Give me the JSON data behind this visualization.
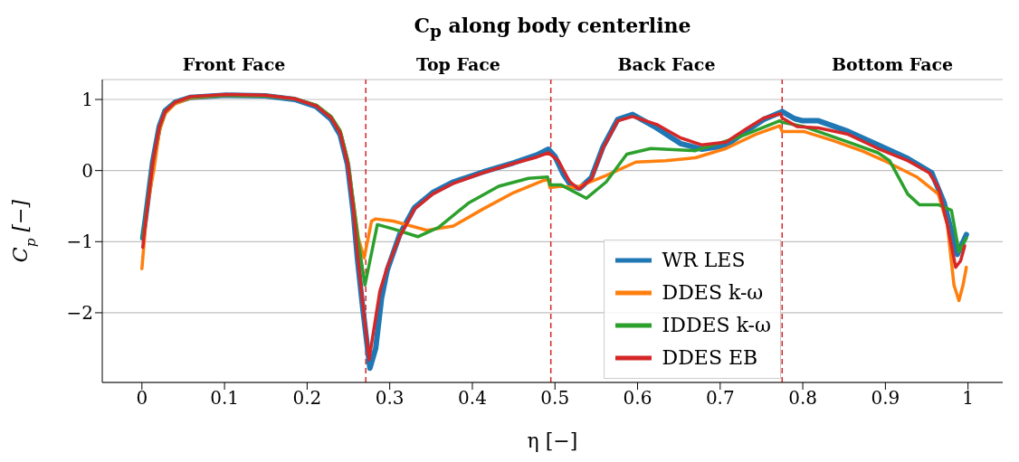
{
  "chart_data": {
    "type": "line",
    "title": "C$_{p}$ along body centerline",
    "xlabel": "η [−]",
    "ylabel": "C$_{p}$ [−]",
    "annotations": [
      "Front Face",
      "Top Face",
      "Back Face",
      "Bottom Face"
    ],
    "xlim": [
      -0.048,
      1.042
    ],
    "ylim": [
      -2.98,
      1.28
    ],
    "xticks": [
      0,
      0.1,
      0.2,
      0.3,
      0.4,
      0.5,
      0.6,
      0.7,
      0.8,
      0.9,
      1
    ],
    "yticks": [
      {
        "value": -2,
        "label": "−2"
      },
      {
        "value": -1,
        "label": "−1"
      },
      0,
      1
    ],
    "grid": "y",
    "legend": "bottom right",
    "marker": "none",
    "line_style": "solid",
    "ref_lines": [
      {
        "axis": "x",
        "value": 0.271,
        "label": null,
        "color": "#d62728",
        "line_style": "dashed"
      },
      {
        "axis": "x",
        "value": 0.495,
        "label": null,
        "color": "#d62728",
        "line_style": "dashed"
      },
      {
        "axis": "x",
        "value": 0.775,
        "label": null,
        "color": "#d62728",
        "line_style": "dashed"
      }
    ],
    "series": [
      {
        "name": "WR LES",
        "color": "#1f77b4",
        "x": [
          0.001,
          0.004,
          0.013,
          0.021,
          0.028,
          0.04,
          0.059,
          0.102,
          0.149,
          0.185,
          0.211,
          0.229,
          0.24,
          0.249,
          0.256,
          0.261,
          0.267,
          0.276,
          0.283,
          0.29,
          0.297,
          0.312,
          0.33,
          0.352,
          0.377,
          0.413,
          0.45,
          0.478,
          0.492,
          0.5,
          0.51,
          0.52,
          0.53,
          0.544,
          0.558,
          0.576,
          0.594,
          0.623,
          0.652,
          0.678,
          0.707,
          0.732,
          0.753,
          0.775,
          0.79,
          0.8,
          0.819,
          0.855,
          0.891,
          0.927,
          0.956,
          0.971,
          0.987,
          0.998
        ],
        "values": [
          -0.95,
          -0.7,
          0.12,
          0.62,
          0.84,
          0.96,
          1.03,
          1.06,
          1.05,
          1.0,
          0.9,
          0.72,
          0.5,
          0.08,
          -0.6,
          -1.25,
          -1.9,
          -2.78,
          -2.5,
          -1.8,
          -1.4,
          -0.9,
          -0.52,
          -0.31,
          -0.16,
          -0.02,
          0.11,
          0.22,
          0.3,
          0.2,
          -0.05,
          -0.22,
          -0.25,
          -0.1,
          0.33,
          0.72,
          0.79,
          0.6,
          0.38,
          0.3,
          0.35,
          0.56,
          0.72,
          0.83,
          0.73,
          0.7,
          0.7,
          0.55,
          0.36,
          0.17,
          -0.03,
          -0.45,
          -1.18,
          -0.9
        ]
      },
      {
        "name": "DDES k-ω",
        "color": "#ff7f0e",
        "x": [
          0.0,
          0.006,
          0.015,
          0.021,
          0.028,
          0.04,
          0.059,
          0.102,
          0.149,
          0.185,
          0.211,
          0.229,
          0.24,
          0.249,
          0.256,
          0.262,
          0.269,
          0.278,
          0.283,
          0.304,
          0.345,
          0.377,
          0.413,
          0.45,
          0.486,
          0.492,
          0.494,
          0.507,
          0.525,
          0.562,
          0.598,
          0.634,
          0.67,
          0.707,
          0.743,
          0.772,
          0.775,
          0.801,
          0.837,
          0.873,
          0.902,
          0.938,
          0.964,
          0.975,
          0.983,
          0.989,
          0.994,
          0.998
        ],
        "values": [
          -1.38,
          -0.54,
          0.05,
          0.55,
          0.8,
          0.94,
          1.02,
          1.06,
          1.05,
          1.01,
          0.92,
          0.76,
          0.56,
          0.15,
          -0.45,
          -0.95,
          -1.23,
          -0.71,
          -0.68,
          -0.71,
          -0.84,
          -0.78,
          -0.54,
          -0.31,
          -0.14,
          -0.13,
          -0.24,
          -0.22,
          -0.24,
          -0.07,
          0.12,
          0.14,
          0.18,
          0.31,
          0.51,
          0.63,
          0.55,
          0.55,
          0.42,
          0.27,
          0.12,
          -0.09,
          -0.33,
          -0.76,
          -1.61,
          -1.83,
          -1.61,
          -1.36
        ]
      },
      {
        "name": "IDDES k-ω",
        "color": "#2ca02c",
        "x": [
          0.001,
          0.004,
          0.013,
          0.021,
          0.028,
          0.04,
          0.059,
          0.102,
          0.149,
          0.185,
          0.211,
          0.229,
          0.24,
          0.249,
          0.256,
          0.262,
          0.27,
          0.285,
          0.304,
          0.334,
          0.359,
          0.395,
          0.432,
          0.468,
          0.491,
          0.494,
          0.507,
          0.538,
          0.562,
          0.587,
          0.616,
          0.67,
          0.725,
          0.772,
          0.775,
          0.801,
          0.855,
          0.891,
          0.905,
          0.927,
          0.941,
          0.964,
          0.98,
          0.989,
          0.998
        ],
        "values": [
          -0.95,
          -0.72,
          0.1,
          0.6,
          0.83,
          0.96,
          1.03,
          1.06,
          1.05,
          1.01,
          0.92,
          0.76,
          0.56,
          0.15,
          -0.45,
          -1.0,
          -1.61,
          -0.76,
          -0.82,
          -0.93,
          -0.8,
          -0.46,
          -0.22,
          -0.11,
          -0.09,
          -0.2,
          -0.2,
          -0.39,
          -0.16,
          0.23,
          0.31,
          0.28,
          0.48,
          0.7,
          0.68,
          0.62,
          0.4,
          0.25,
          0.14,
          -0.33,
          -0.48,
          -0.48,
          -0.56,
          -1.14,
          -0.95
        ]
      },
      {
        "name": "DDES EB",
        "color": "#d62728",
        "x": [
          0.001,
          0.004,
          0.013,
          0.021,
          0.028,
          0.04,
          0.059,
          0.102,
          0.149,
          0.185,
          0.211,
          0.229,
          0.24,
          0.249,
          0.256,
          0.261,
          0.267,
          0.275,
          0.288,
          0.297,
          0.312,
          0.33,
          0.352,
          0.377,
          0.413,
          0.45,
          0.478,
          0.492,
          0.504,
          0.518,
          0.529,
          0.544,
          0.558,
          0.576,
          0.594,
          0.623,
          0.652,
          0.678,
          0.707,
          0.732,
          0.753,
          0.773,
          0.775,
          0.793,
          0.819,
          0.855,
          0.891,
          0.927,
          0.953,
          0.964,
          0.975,
          0.985,
          0.991,
          0.996
        ],
        "values": [
          -1.08,
          -0.76,
          0.1,
          0.61,
          0.83,
          0.96,
          1.04,
          1.07,
          1.06,
          1.01,
          0.91,
          0.74,
          0.53,
          0.1,
          -0.54,
          -1.18,
          -1.83,
          -2.66,
          -1.7,
          -1.36,
          -0.93,
          -0.54,
          -0.33,
          -0.18,
          -0.03,
          0.1,
          0.19,
          0.25,
          0.14,
          -0.16,
          -0.26,
          -0.12,
          0.31,
          0.7,
          0.76,
          0.65,
          0.46,
          0.36,
          0.4,
          0.59,
          0.74,
          0.8,
          0.74,
          0.62,
          0.6,
          0.51,
          0.31,
          0.14,
          -0.03,
          -0.24,
          -0.76,
          -1.36,
          -1.27,
          -1.06
        ]
      }
    ]
  }
}
